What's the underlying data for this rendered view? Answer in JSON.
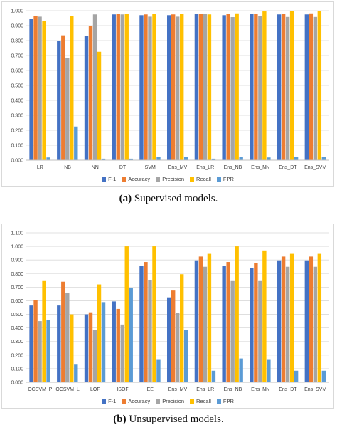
{
  "charts": [
    {
      "id": "a",
      "caption_label": "(a)",
      "caption_text": "Supervised models.",
      "chart_data": {
        "type": "bar",
        "categories": [
          "LR",
          "NB",
          "NN",
          "DT",
          "SVM",
          "Ens_MV",
          "Ens_LR",
          "Ens_NB",
          "Ens_NN",
          "Ens_DT",
          "Ens_SVM"
        ],
        "series": [
          {
            "name": "F-1",
            "color": "#4472c4",
            "values": [
              0.945,
              0.8,
              0.83,
              0.975,
              0.97,
              0.97,
              0.977,
              0.97,
              0.977,
              0.975,
              0.975
            ]
          },
          {
            "name": "Accuracy",
            "color": "#ed7d31",
            "values": [
              0.965,
              0.835,
              0.9,
              0.98,
              0.975,
              0.975,
              0.98,
              0.977,
              0.98,
              0.98,
              0.982
            ]
          },
          {
            "name": "Precision",
            "color": "#a5a5a5",
            "values": [
              0.96,
              0.685,
              0.975,
              0.975,
              0.96,
              0.96,
              0.978,
              0.957,
              0.965,
              0.958,
              0.958
            ]
          },
          {
            "name": "Recall",
            "color": "#ffc000",
            "values": [
              0.93,
              0.965,
              0.725,
              0.977,
              0.98,
              0.98,
              0.975,
              0.982,
              0.995,
              0.997,
              0.997
            ]
          },
          {
            "name": "FPR",
            "color": "#5b9bd5",
            "values": [
              0.018,
              0.225,
              0.01,
              0.01,
              0.02,
              0.02,
              0.01,
              0.02,
              0.018,
              0.02,
              0.02
            ]
          }
        ],
        "yticks": [
          "0.000",
          "0.100",
          "0.200",
          "0.300",
          "0.400",
          "0.500",
          "0.600",
          "0.700",
          "0.800",
          "0.900",
          "1.000"
        ],
        "ylim": [
          0,
          1
        ],
        "grid": true,
        "legend": "bottom"
      }
    },
    {
      "id": "b",
      "caption_label": "(b)",
      "caption_text": "Unsupervised models.",
      "chart_data": {
        "type": "bar",
        "categories": [
          "OCSVM_P",
          "OCSVM_L",
          "LOF",
          "ISOF",
          "EE",
          "Ens_MV",
          "Ens_LR",
          "Ens_NB",
          "Ens_NN",
          "Ens_DT",
          "Ens_SVM"
        ],
        "series": [
          {
            "name": "F-1",
            "color": "#4472c4",
            "values": [
              0.565,
              0.565,
              0.5,
              0.595,
              0.855,
              0.625,
              0.897,
              0.855,
              0.84,
              0.897,
              0.897
            ]
          },
          {
            "name": "Accuracy",
            "color": "#ed7d31",
            "values": [
              0.607,
              0.74,
              0.515,
              0.54,
              0.885,
              0.675,
              0.925,
              0.885,
              0.875,
              0.925,
              0.925
            ]
          },
          {
            "name": "Precision",
            "color": "#a5a5a5",
            "values": [
              0.45,
              0.655,
              0.383,
              0.425,
              0.75,
              0.51,
              0.85,
              0.745,
              0.745,
              0.85,
              0.85
            ]
          },
          {
            "name": "Recall",
            "color": "#ffc000",
            "values": [
              0.745,
              0.5,
              0.72,
              1.0,
              1.0,
              0.795,
              0.945,
              1.0,
              0.97,
              0.945,
              0.945
            ]
          },
          {
            "name": "FPR",
            "color": "#5b9bd5",
            "values": [
              0.46,
              0.135,
              0.59,
              0.695,
              0.17,
              0.385,
              0.085,
              0.175,
              0.17,
              0.085,
              0.085
            ]
          }
        ],
        "yticks": [
          "0.000",
          "0.100",
          "0.200",
          "0.300",
          "0.400",
          "0.500",
          "0.600",
          "0.700",
          "0.800",
          "0.900",
          "1.000",
          "1.100"
        ],
        "ylim": [
          0,
          1.1
        ],
        "grid": true,
        "legend": "bottom"
      }
    }
  ]
}
